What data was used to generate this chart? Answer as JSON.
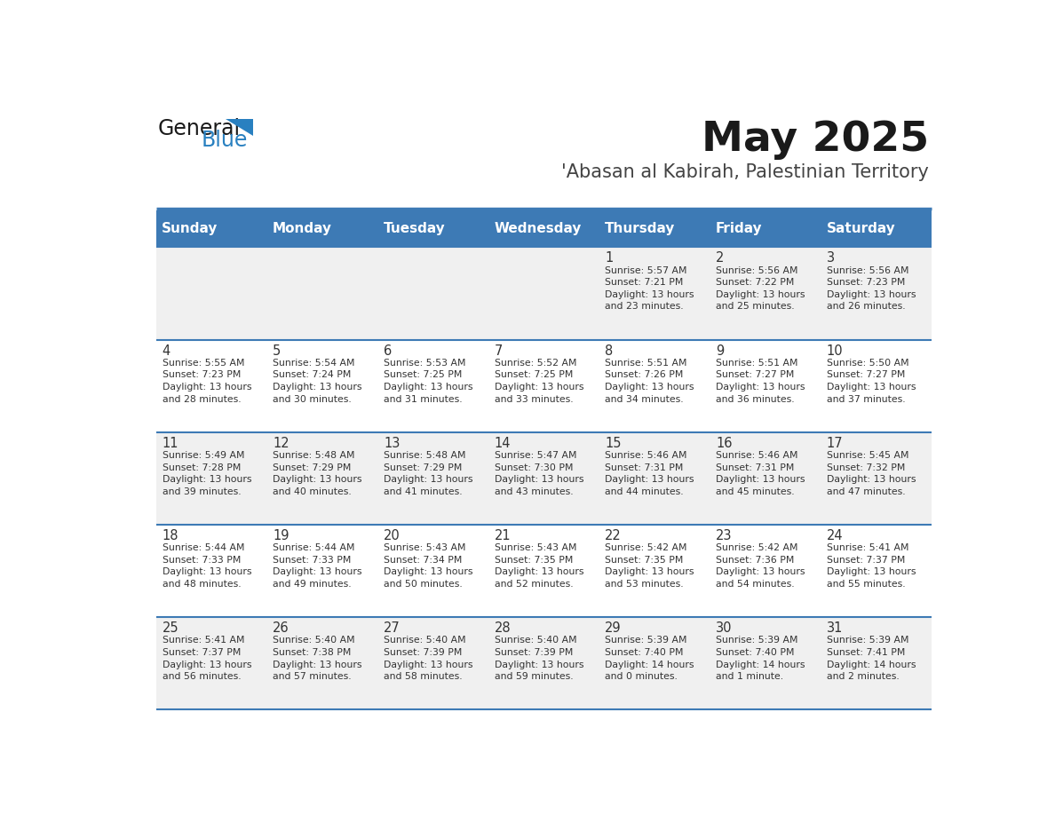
{
  "title": "May 2025",
  "subtitle": "'Abasan al Kabirah, Palestinian Territory",
  "days_of_week": [
    "Sunday",
    "Monday",
    "Tuesday",
    "Wednesday",
    "Thursday",
    "Friday",
    "Saturday"
  ],
  "header_bg": "#3d7ab5",
  "header_text": "#ffffff",
  "row_bg_even": "#f0f0f0",
  "row_bg_odd": "#ffffff",
  "day_number_color": "#333333",
  "text_color": "#333333",
  "separator_color": "#3d7ab5",
  "cell_data": [
    [
      "",
      "",
      "",
      "",
      "1\nSunrise: 5:57 AM\nSunset: 7:21 PM\nDaylight: 13 hours\nand 23 minutes.",
      "2\nSunrise: 5:56 AM\nSunset: 7:22 PM\nDaylight: 13 hours\nand 25 minutes.",
      "3\nSunrise: 5:56 AM\nSunset: 7:23 PM\nDaylight: 13 hours\nand 26 minutes."
    ],
    [
      "4\nSunrise: 5:55 AM\nSunset: 7:23 PM\nDaylight: 13 hours\nand 28 minutes.",
      "5\nSunrise: 5:54 AM\nSunset: 7:24 PM\nDaylight: 13 hours\nand 30 minutes.",
      "6\nSunrise: 5:53 AM\nSunset: 7:25 PM\nDaylight: 13 hours\nand 31 minutes.",
      "7\nSunrise: 5:52 AM\nSunset: 7:25 PM\nDaylight: 13 hours\nand 33 minutes.",
      "8\nSunrise: 5:51 AM\nSunset: 7:26 PM\nDaylight: 13 hours\nand 34 minutes.",
      "9\nSunrise: 5:51 AM\nSunset: 7:27 PM\nDaylight: 13 hours\nand 36 minutes.",
      "10\nSunrise: 5:50 AM\nSunset: 7:27 PM\nDaylight: 13 hours\nand 37 minutes."
    ],
    [
      "11\nSunrise: 5:49 AM\nSunset: 7:28 PM\nDaylight: 13 hours\nand 39 minutes.",
      "12\nSunrise: 5:48 AM\nSunset: 7:29 PM\nDaylight: 13 hours\nand 40 minutes.",
      "13\nSunrise: 5:48 AM\nSunset: 7:29 PM\nDaylight: 13 hours\nand 41 minutes.",
      "14\nSunrise: 5:47 AM\nSunset: 7:30 PM\nDaylight: 13 hours\nand 43 minutes.",
      "15\nSunrise: 5:46 AM\nSunset: 7:31 PM\nDaylight: 13 hours\nand 44 minutes.",
      "16\nSunrise: 5:46 AM\nSunset: 7:31 PM\nDaylight: 13 hours\nand 45 minutes.",
      "17\nSunrise: 5:45 AM\nSunset: 7:32 PM\nDaylight: 13 hours\nand 47 minutes."
    ],
    [
      "18\nSunrise: 5:44 AM\nSunset: 7:33 PM\nDaylight: 13 hours\nand 48 minutes.",
      "19\nSunrise: 5:44 AM\nSunset: 7:33 PM\nDaylight: 13 hours\nand 49 minutes.",
      "20\nSunrise: 5:43 AM\nSunset: 7:34 PM\nDaylight: 13 hours\nand 50 minutes.",
      "21\nSunrise: 5:43 AM\nSunset: 7:35 PM\nDaylight: 13 hours\nand 52 minutes.",
      "22\nSunrise: 5:42 AM\nSunset: 7:35 PM\nDaylight: 13 hours\nand 53 minutes.",
      "23\nSunrise: 5:42 AM\nSunset: 7:36 PM\nDaylight: 13 hours\nand 54 minutes.",
      "24\nSunrise: 5:41 AM\nSunset: 7:37 PM\nDaylight: 13 hours\nand 55 minutes."
    ],
    [
      "25\nSunrise: 5:41 AM\nSunset: 7:37 PM\nDaylight: 13 hours\nand 56 minutes.",
      "26\nSunrise: 5:40 AM\nSunset: 7:38 PM\nDaylight: 13 hours\nand 57 minutes.",
      "27\nSunrise: 5:40 AM\nSunset: 7:39 PM\nDaylight: 13 hours\nand 58 minutes.",
      "28\nSunrise: 5:40 AM\nSunset: 7:39 PM\nDaylight: 13 hours\nand 59 minutes.",
      "29\nSunrise: 5:39 AM\nSunset: 7:40 PM\nDaylight: 14 hours\nand 0 minutes.",
      "30\nSunrise: 5:39 AM\nSunset: 7:40 PM\nDaylight: 14 hours\nand 1 minute.",
      "31\nSunrise: 5:39 AM\nSunset: 7:41 PM\nDaylight: 14 hours\nand 2 minutes."
    ]
  ]
}
